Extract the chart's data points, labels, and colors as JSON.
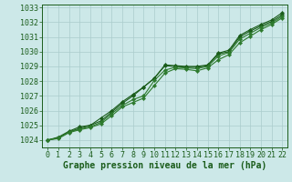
{
  "xlabel": "Graphe pression niveau de la mer (hPa)",
  "xlim": [
    -0.5,
    22.5
  ],
  "ylim": [
    1023.5,
    1033.2
  ],
  "yticks": [
    1024,
    1025,
    1026,
    1027,
    1028,
    1029,
    1030,
    1031,
    1032,
    1033
  ],
  "xticks": [
    0,
    1,
    2,
    3,
    4,
    5,
    6,
    7,
    8,
    9,
    10,
    11,
    12,
    13,
    14,
    15,
    16,
    17,
    18,
    19,
    20,
    21,
    22
  ],
  "background_color": "#cce8e8",
  "grid_color": "#aacccc",
  "line_color_dark": "#1a5c1a",
  "line_color_mid": "#2d7a2d",
  "series": {
    "line1": [
      1024.0,
      1024.2,
      1024.6,
      1024.9,
      1025.0,
      1025.5,
      1026.0,
      1026.6,
      1027.1,
      1027.6,
      1028.2,
      1029.1,
      1029.05,
      1029.0,
      1029.0,
      1029.1,
      1029.9,
      1030.1,
      1031.1,
      1031.5,
      1031.85,
      1032.15,
      1032.65
    ],
    "line2": [
      1024.0,
      1024.15,
      1024.55,
      1024.8,
      1025.0,
      1025.3,
      1025.9,
      1026.5,
      1027.0,
      1027.6,
      1028.2,
      1029.05,
      1029.0,
      1028.95,
      1028.95,
      1029.05,
      1029.85,
      1030.0,
      1031.0,
      1031.4,
      1031.75,
      1032.05,
      1032.5
    ],
    "line3": [
      1024.0,
      1024.15,
      1024.55,
      1024.75,
      1024.9,
      1025.2,
      1025.8,
      1026.35,
      1026.75,
      1027.0,
      1028.05,
      1028.75,
      1028.95,
      1028.9,
      1028.85,
      1029.0,
      1029.7,
      1029.95,
      1030.85,
      1031.25,
      1031.65,
      1031.95,
      1032.4
    ],
    "line4": [
      1024.0,
      1024.1,
      1024.5,
      1024.7,
      1024.85,
      1025.1,
      1025.65,
      1026.25,
      1026.55,
      1026.85,
      1027.7,
      1028.55,
      1028.85,
      1028.8,
      1028.7,
      1028.9,
      1029.45,
      1029.8,
      1030.6,
      1031.05,
      1031.5,
      1031.85,
      1032.3
    ]
  },
  "marker": "D",
  "marker_size": 2.2,
  "linewidth": 0.8,
  "xlabel_fontsize": 7,
  "tick_fontsize": 6,
  "tick_color": "#1a5c1a",
  "spine_color": "#1a5c1a"
}
